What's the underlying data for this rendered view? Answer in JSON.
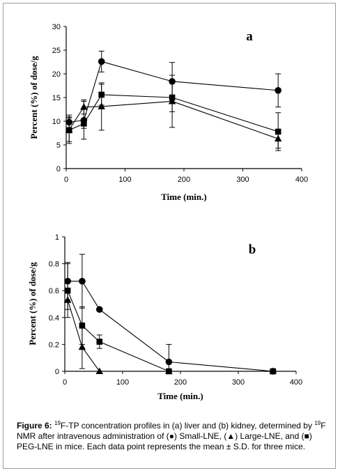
{
  "chart_data": [
    {
      "type": "line",
      "panel_label": "a",
      "xlabel": "Time (min.)",
      "ylabel": "Percent (%) of dose/g",
      "xlim": [
        0,
        400
      ],
      "ylim": [
        0,
        30
      ],
      "xticks": [
        "0",
        "100",
        "200",
        "300",
        "400"
      ],
      "yticks": [
        "0",
        "5",
        "10",
        "15",
        "20",
        "25",
        "30"
      ],
      "grid": false,
      "series": [
        {
          "marker": "circle",
          "x": [
            5,
            30,
            60,
            180,
            360
          ],
          "y": [
            9.8,
            10.2,
            22.6,
            18.4,
            16.5
          ],
          "err": [
            1.5,
            4.0,
            2.2,
            4.0,
            3.5
          ]
        },
        {
          "marker": "triangle",
          "x": [
            5,
            30,
            60,
            180,
            360
          ],
          "y": [
            8.2,
            13.0,
            13.1,
            14.2,
            6.3
          ],
          "err": [
            2.5,
            1.5,
            5.0,
            5.5,
            2.0
          ]
        },
        {
          "marker": "square",
          "x": [
            5,
            30,
            60,
            180,
            360
          ],
          "y": [
            8.1,
            9.5,
            15.6,
            15.0,
            7.8
          ],
          "err": [
            2.8,
            1.0,
            2.2,
            3.0,
            4.0
          ]
        }
      ]
    },
    {
      "type": "line",
      "panel_label": "b",
      "xlabel": "Time (min.)",
      "ylabel": "Percent (%) of dose/g",
      "xlim": [
        0,
        400
      ],
      "ylim": [
        0,
        1
      ],
      "xticks": [
        "0",
        "100",
        "200",
        "300",
        "400"
      ],
      "yticks": [
        "0",
        "0.2",
        "0.4",
        "0.6",
        "0.8",
        "1"
      ],
      "grid": false,
      "series": [
        {
          "marker": "circle",
          "x": [
            5,
            30,
            60,
            180,
            360
          ],
          "y": [
            0.67,
            0.67,
            0.46,
            0.07,
            0.0
          ],
          "err": [
            0.14,
            0.2,
            0.0,
            0.13,
            0.0
          ]
        },
        {
          "marker": "triangle",
          "x": [
            5,
            30,
            60,
            180,
            360
          ],
          "y": [
            0.53,
            0.18,
            0.0,
            0.0,
            0.0
          ],
          "err": [
            0.07,
            0.16,
            0.0,
            0.0,
            0.0
          ]
        },
        {
          "marker": "square",
          "x": [
            5,
            30,
            60,
            180,
            360
          ],
          "y": [
            0.6,
            0.34,
            0.22,
            0.0,
            0.0
          ],
          "err": [
            0.2,
            0.14,
            0.05,
            0.0,
            0.0
          ]
        }
      ]
    }
  ],
  "caption": {
    "figure_label": "Figure 6:",
    "sup_19_a": "19",
    "text_1": "F-TP concentration profiles in (a) liver and (b) kidney, determined by ",
    "sup_19_b": "19",
    "text_2": "F NMR after intravenous administration of (●) Small-LNE, (▲) Large-LNE, and (■) PEG-LNE in mice. Each data point represents the mean ± S.D. for three mice."
  }
}
